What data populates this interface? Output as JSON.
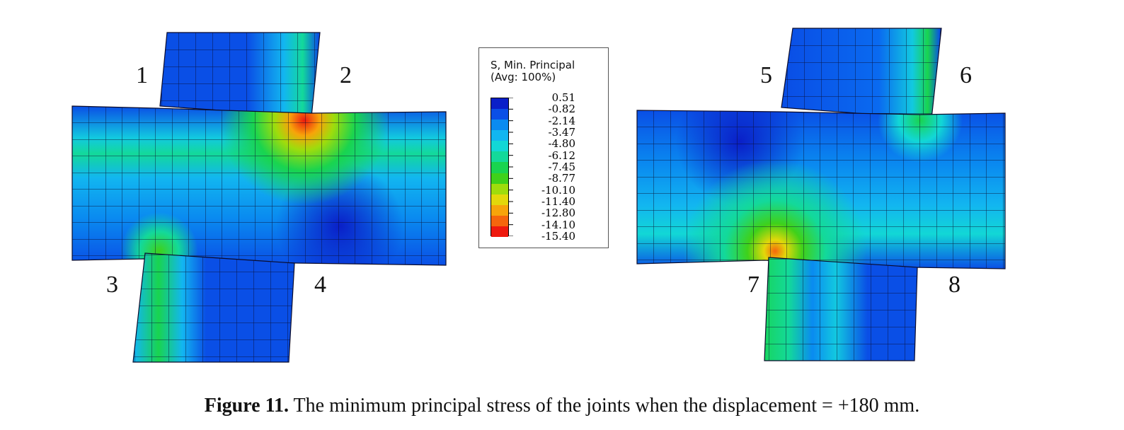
{
  "figure": {
    "legend": {
      "title_line1": "S, Min. Principal",
      "title_line2": "(Avg: 100%)",
      "values": [
        "0.51",
        "-0.82",
        "-2.14",
        "-3.47",
        "-4.80",
        "-6.12",
        "-7.45",
        "-8.77",
        "-10.10",
        "-11.40",
        "-12.80",
        "-14.10",
        "-15.40"
      ],
      "colors": [
        "#0a1fc8",
        "#0a4fe6",
        "#0a8bf0",
        "#12b6f0",
        "#12d7d6",
        "#13d99a",
        "#19d44f",
        "#3fd11a",
        "#9fdc0c",
        "#e3d80a",
        "#f7a40a",
        "#f5660c",
        "#ee1a0e"
      ]
    },
    "joint_numbers": [
      "1",
      "2",
      "3",
      "4",
      "5",
      "6",
      "7",
      "8"
    ],
    "caption": {
      "label": "Figure 11.",
      "text": "The minimum principal stress of the joints when the displacement = +180 mm."
    }
  }
}
